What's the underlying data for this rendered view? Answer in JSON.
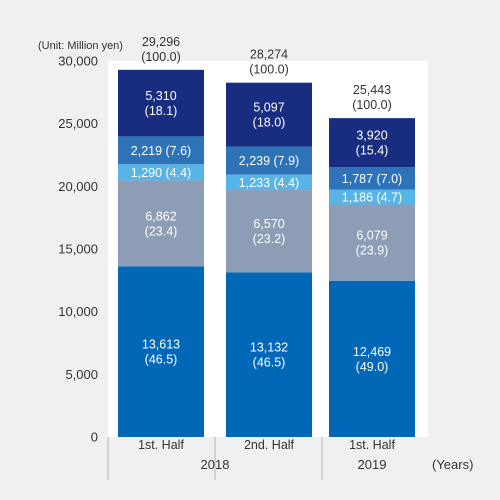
{
  "chart_data": {
    "type": "bar",
    "stacked": true,
    "unit_label": "(Unit: Million yen)",
    "x_unit_label": "(Years)",
    "ylim": [
      0,
      30000
    ],
    "yticks": [
      0,
      5000,
      10000,
      15000,
      20000,
      25000,
      30000
    ],
    "ytick_labels": [
      "0",
      "5,000",
      "10,000",
      "15,000",
      "20,000",
      "25,000",
      "30,000"
    ],
    "legend": "none",
    "grid": false,
    "categories": [
      "1st. Half",
      "2nd. Half",
      "1st. Half"
    ],
    "year_groups": [
      {
        "label": "2018",
        "span": 2
      },
      {
        "label": "2019",
        "span": 1
      }
    ],
    "series": [
      {
        "color": "#0068b7",
        "values": [
          13613,
          13132,
          12469
        ],
        "labels": [
          [
            "13,613",
            "(46.5)"
          ],
          [
            "13,132",
            "(46.5)"
          ],
          [
            "12,469",
            "(49.0)"
          ]
        ]
      },
      {
        "color": "#8c9db5",
        "values": [
          6862,
          6570,
          6079
        ],
        "labels": [
          [
            "6,862",
            "(23.4)"
          ],
          [
            "6,570",
            "(23.2)"
          ],
          [
            "6,079",
            "(23.9)"
          ]
        ]
      },
      {
        "color": "#58b4e6",
        "values": [
          1290,
          1233,
          1186
        ],
        "labels": [
          [
            "1,290 (4.4)"
          ],
          [
            "1,233 (4.4)"
          ],
          [
            "1,186 (4.7)"
          ]
        ]
      },
      {
        "color": "#2e73b8",
        "values": [
          2219,
          2239,
          1787
        ],
        "labels": [
          [
            "2,219 (7.6)"
          ],
          [
            "2,239 (7.9)"
          ],
          [
            "1,787 (7.0)"
          ]
        ]
      },
      {
        "color": "#182c80",
        "values": [
          5310,
          5097,
          3920
        ],
        "labels": [
          [
            "5,310",
            "(18.1)"
          ],
          [
            "5,097",
            "(18.0)"
          ],
          [
            "3,920",
            "(15.4)"
          ]
        ]
      }
    ],
    "totals": [
      {
        "value": 29296,
        "label": "29,296",
        "share": "(100.0)"
      },
      {
        "value": 28274,
        "label": "28,274",
        "share": "(100.0)"
      },
      {
        "value": 25443,
        "label": "25,443",
        "share": "(100.0)"
      }
    ]
  }
}
